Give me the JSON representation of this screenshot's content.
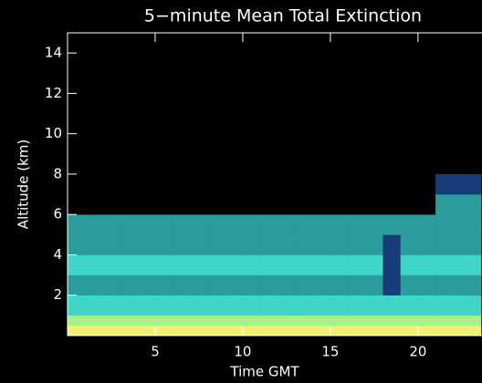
{
  "chart_data": {
    "type": "heatmap",
    "title": "5−minute Mean Total Extinction",
    "xlabel": "Time GMT",
    "ylabel": "Altitude (km)",
    "xlim": [
      0,
      23.6
    ],
    "ylim": [
      0,
      15
    ],
    "xticks": [
      5,
      10,
      15,
      20
    ],
    "yticks": [
      2,
      4,
      6,
      8,
      10,
      12,
      14
    ],
    "x_edges": [
      0,
      1,
      2,
      3,
      4,
      5,
      6,
      7,
      8,
      9,
      10,
      11,
      12,
      13,
      14,
      15,
      16,
      17,
      18,
      19,
      20,
      21,
      22,
      23,
      23.6
    ],
    "y_edges": [
      0,
      0.5,
      1,
      2,
      3,
      4,
      5,
      6,
      7,
      8
    ],
    "colors": [
      "#000000",
      "#183c78",
      "#2a9c9c",
      "#3fd6c8",
      "#a8f08a",
      "#f2f070"
    ],
    "values": [
      [
        5,
        5,
        5,
        5,
        5,
        5,
        5,
        5,
        5,
        5,
        5,
        5,
        5,
        5,
        5,
        5,
        5,
        5,
        5,
        5,
        5,
        5,
        5,
        5
      ],
      [
        4,
        4,
        4,
        4,
        4,
        4,
        4,
        4,
        4,
        4,
        4,
        4,
        4,
        4,
        4,
        4,
        4,
        4,
        4,
        4,
        4,
        4,
        4,
        4
      ],
      [
        3,
        3,
        3,
        3,
        3,
        3,
        3,
        3,
        3,
        3,
        3,
        3,
        3,
        3,
        3,
        3,
        3,
        3,
        3,
        3,
        3,
        3,
        3,
        3
      ],
      [
        2,
        2,
        2,
        2,
        2,
        2,
        2,
        2,
        2,
        2,
        2,
        2,
        2,
        2,
        2,
        2,
        2,
        2,
        1,
        2,
        2,
        2,
        2,
        2
      ],
      [
        3,
        3,
        3,
        3,
        3,
        3,
        3,
        3,
        3,
        3,
        3,
        3,
        3,
        3,
        3,
        3,
        3,
        3,
        1,
        3,
        3,
        3,
        3,
        3
      ],
      [
        2,
        2,
        2,
        2,
        2,
        2,
        2,
        2,
        2,
        2,
        2,
        2,
        2,
        2,
        2,
        2,
        2,
        2,
        1,
        2,
        2,
        2,
        2,
        2
      ],
      [
        2,
        2,
        2,
        2,
        2,
        2,
        2,
        2,
        2,
        2,
        2,
        2,
        2,
        2,
        2,
        2,
        2,
        2,
        2,
        2,
        2,
        2,
        2,
        2
      ],
      [
        0,
        0,
        0,
        0,
        0,
        0,
        0,
        0,
        0,
        0,
        0,
        0,
        0,
        0,
        0,
        0,
        0,
        0,
        0,
        0,
        0,
        2,
        2,
        2
      ],
      [
        0,
        0,
        0,
        0,
        0,
        0,
        0,
        0,
        0,
        0,
        0,
        0,
        0,
        0,
        0,
        0,
        0,
        0,
        0,
        0,
        0,
        1,
        1,
        1
      ]
    ]
  }
}
